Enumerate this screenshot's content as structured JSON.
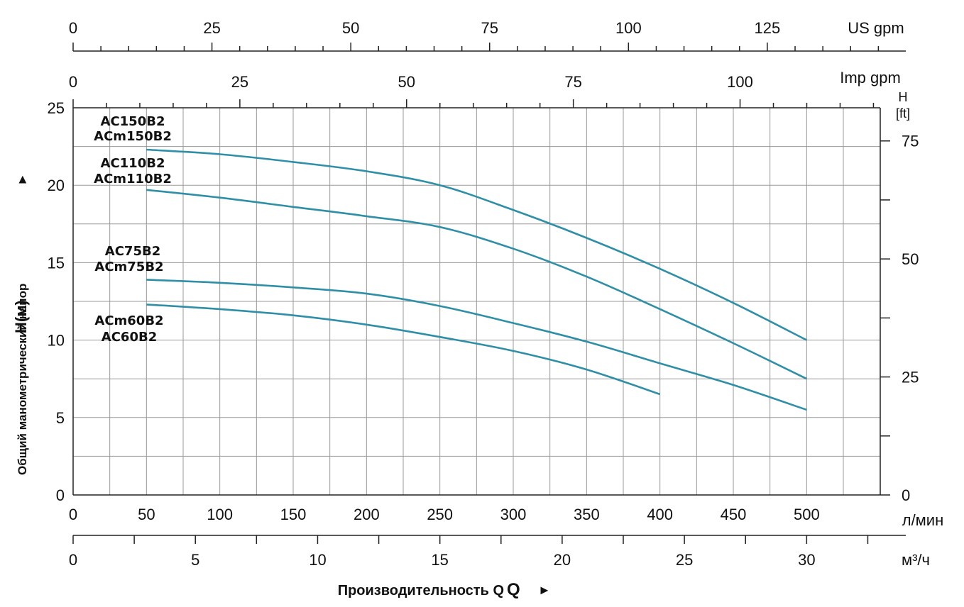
{
  "chart_data": {
    "type": "line",
    "title": "",
    "curve_color": "#2e8fa6",
    "series": [
      {
        "name": "AC150B2 / ACm150B2",
        "labels": [
          "AC150B2",
          "ACm150B2"
        ],
        "x": [
          50,
          100,
          150,
          200,
          250,
          300,
          350,
          400,
          450,
          500
        ],
        "y": [
          22.3,
          22.0,
          21.5,
          20.9,
          20.0,
          18.4,
          16.6,
          14.6,
          12.4,
          10.0
        ]
      },
      {
        "name": "AC110B2 / ACm110B2",
        "labels": [
          "AC110B2",
          "ACm110B2"
        ],
        "x": [
          50,
          100,
          150,
          200,
          250,
          300,
          350,
          400,
          450,
          500
        ],
        "y": [
          19.7,
          19.2,
          18.6,
          18.0,
          17.3,
          15.9,
          14.1,
          12.0,
          9.8,
          7.5
        ]
      },
      {
        "name": "AC75B2 / ACm75B2",
        "labels": [
          "AC75B2",
          "ACm75B2"
        ],
        "x": [
          50,
          100,
          150,
          200,
          250,
          300,
          350,
          400,
          450,
          500
        ],
        "y": [
          13.9,
          13.7,
          13.4,
          13.0,
          12.2,
          11.1,
          9.9,
          8.5,
          7.1,
          5.5
        ]
      },
      {
        "name": "ACm60B2 / AC60B2",
        "labels": [
          "ACm60B2",
          "AC60B2"
        ],
        "x": [
          50,
          100,
          150,
          200,
          250,
          300,
          350,
          400
        ],
        "y": [
          12.3,
          12.0,
          11.6,
          11.0,
          10.2,
          9.3,
          8.1,
          6.5
        ]
      }
    ],
    "xlabel": "Производительность Q",
    "xlabel_arrow": "►",
    "ylabel": "Общий манометрический напор",
    "ylabel_h": "H(м)",
    "ylabel_arrow": "►",
    "ylim": [
      0,
      25
    ],
    "xlim": [
      0,
      550
    ],
    "grid": true,
    "axes": {
      "left": {
        "unit": "",
        "ticks": [
          "0",
          "5",
          "10",
          "15",
          "20",
          "25"
        ]
      },
      "right": {
        "unit_top": "H",
        "unit_bottom": "[ft]",
        "ticks": [
          "0",
          "25",
          "50",
          "75"
        ]
      },
      "bottom_lmin": {
        "unit": "л/мин",
        "ticks": [
          "0",
          "50",
          "100",
          "150",
          "200",
          "250",
          "300",
          "350",
          "400",
          "450",
          "500"
        ]
      },
      "bottom_m3h": {
        "unit": "м³/ч",
        "ticks": [
          "0",
          "5",
          "10",
          "15",
          "20",
          "25",
          "30"
        ]
      },
      "top_us": {
        "unit": "US gpm",
        "ticks": [
          "0",
          "25",
          "50",
          "75",
          "100",
          "125"
        ]
      },
      "top_imp": {
        "unit": "Imp gpm",
        "ticks": [
          "0",
          "25",
          "50",
          "75",
          "100"
        ]
      }
    }
  }
}
